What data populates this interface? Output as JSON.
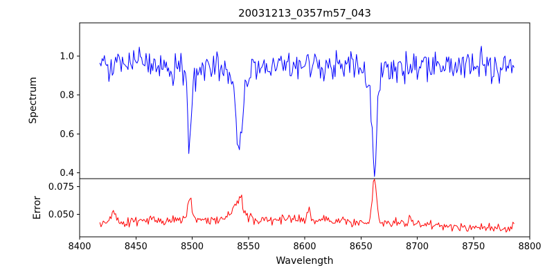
{
  "chart_data": [
    {
      "type": "line",
      "name": "spectrum",
      "title": "20031213_0357m57_043",
      "ylabel": "Spectrum",
      "color": "#0000ff",
      "x_start": 8418,
      "x_end": 8786,
      "x_step": 1,
      "xlim": [
        8400,
        8800
      ],
      "ylim": [
        0.37,
        1.17
      ],
      "yticks": [
        0.4,
        0.6,
        0.8,
        1.0
      ],
      "ytick_labels": [
        "0.4",
        "0.6",
        "0.8",
        "1.0"
      ],
      "baseline": 0.95,
      "noise_sigma": 0.035,
      "spike_prob": 0.03,
      "spike_scale": 0.1,
      "absorption_lines": [
        {
          "center": 8498,
          "depth": 0.3,
          "sigma": 1.5
        },
        {
          "center": 8498,
          "depth": 0.08,
          "sigma": 4.0
        },
        {
          "center": 8542,
          "depth": 0.32,
          "sigma": 2.5
        },
        {
          "center": 8542,
          "depth": 0.12,
          "sigma": 7.0
        },
        {
          "center": 8662,
          "depth": 0.45,
          "sigma": 2.0
        },
        {
          "center": 8662,
          "depth": 0.1,
          "sigma": 5.5
        }
      ],
      "seed": 20031213
    },
    {
      "type": "line",
      "name": "error",
      "ylabel": "Error",
      "color": "#ff0000",
      "x_start": 8418,
      "x_end": 8786,
      "x_step": 1,
      "xlim": [
        8400,
        8800
      ],
      "ylim": [
        0.03,
        0.082
      ],
      "yticks": [
        0.05,
        0.075
      ],
      "ytick_labels": [
        "0.050",
        "0.075"
      ],
      "baseline": 0.042,
      "noise_sigma": 0.0022,
      "emission_peaks": [
        {
          "center": 8545,
          "height": 0.004,
          "sigma": 80
        },
        {
          "center": 8760,
          "height": -0.004,
          "sigma": 40
        },
        {
          "center": 8430,
          "height": 0.011,
          "sigma": 1.5
        },
        {
          "center": 8498,
          "height": 0.019,
          "sigma": 1.8
        },
        {
          "center": 8540,
          "height": 0.014,
          "sigma": 5.0
        },
        {
          "center": 8543,
          "height": 0.008,
          "sigma": 1.5
        },
        {
          "center": 8604,
          "height": 0.009,
          "sigma": 1.5
        },
        {
          "center": 8662,
          "height": 0.038,
          "sigma": 1.8
        },
        {
          "center": 8694,
          "height": 0.007,
          "sigma": 1.5
        }
      ],
      "seed": 357
    }
  ],
  "x_axis": {
    "label": "Wavelength",
    "ticks": [
      8400,
      8450,
      8500,
      8550,
      8600,
      8650,
      8700,
      8750,
      8800
    ],
    "tick_labels": [
      "8400",
      "8450",
      "8500",
      "8550",
      "8600",
      "8650",
      "8700",
      "8750",
      "8800"
    ]
  }
}
